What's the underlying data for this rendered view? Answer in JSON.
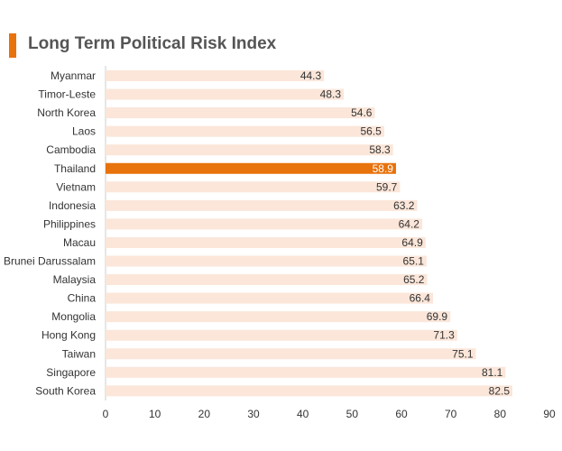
{
  "chart_data": {
    "type": "bar",
    "orientation": "horizontal",
    "title": "Long Term Political Risk Index",
    "xlabel": "",
    "ylabel": "",
    "xlim": [
      0,
      90
    ],
    "x_ticks": [
      0,
      10,
      20,
      30,
      40,
      50,
      60,
      70,
      80,
      90
    ],
    "grid": false,
    "legend": "none",
    "categories": [
      "Myanmar",
      "Timor-Leste",
      "North Korea",
      "Laos",
      "Cambodia",
      "Thailand",
      "Vietnam",
      "Indonesia",
      "Philippines",
      "Macau",
      "Brunei Darussalam",
      "Malaysia",
      "China",
      "Mongolia",
      "Hong Kong",
      "Taiwan",
      "Singapore",
      "South Korea"
    ],
    "values": [
      44.3,
      48.3,
      54.6,
      56.5,
      58.3,
      58.9,
      59.7,
      63.2,
      64.2,
      64.9,
      65.1,
      65.2,
      66.4,
      69.9,
      71.3,
      75.1,
      81.1,
      82.5
    ],
    "highlight": "Thailand",
    "colors": {
      "bar": "#fbe6d9",
      "highlight": "#e8720c",
      "title_accent": "#e8720c",
      "label": "#333333",
      "highlight_label": "#ffffff",
      "axis": "#cccccc"
    }
  }
}
